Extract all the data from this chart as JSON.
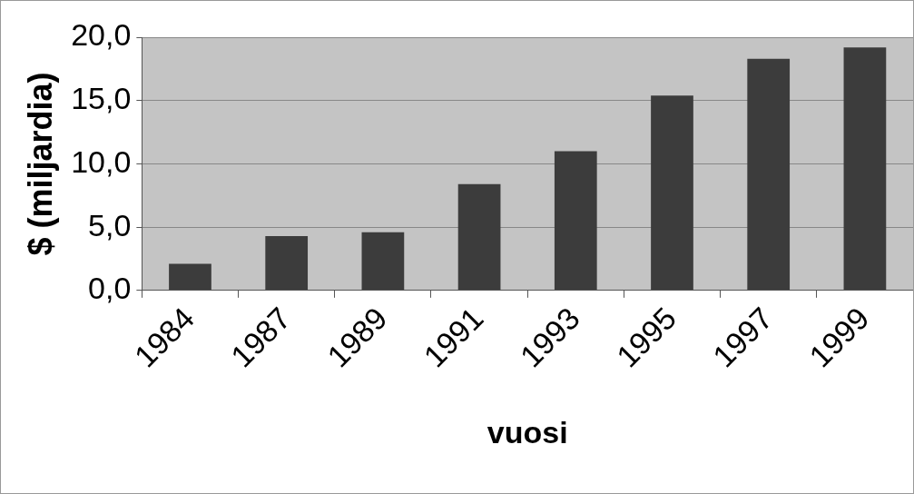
{
  "chart_data": {
    "type": "bar",
    "xlabel": "vuosi",
    "ylabel": "$ (miljardia)",
    "categories": [
      "1984",
      "1987",
      "1989",
      "1991",
      "1993",
      "1995",
      "1997",
      "1999"
    ],
    "values": [
      2.1,
      4.3,
      4.6,
      8.4,
      11.0,
      15.4,
      18.3,
      19.2
    ],
    "color": "#3c3c3c",
    "ylim": [
      0,
      20
    ],
    "yticks": [
      {
        "value": 0,
        "label": "0,0"
      },
      {
        "value": 5,
        "label": "5,0"
      },
      {
        "value": 10,
        "label": "10,0"
      },
      {
        "value": 15,
        "label": "15,0"
      },
      {
        "value": 20,
        "label": "20,0"
      }
    ],
    "grid": "y",
    "legend": false
  }
}
